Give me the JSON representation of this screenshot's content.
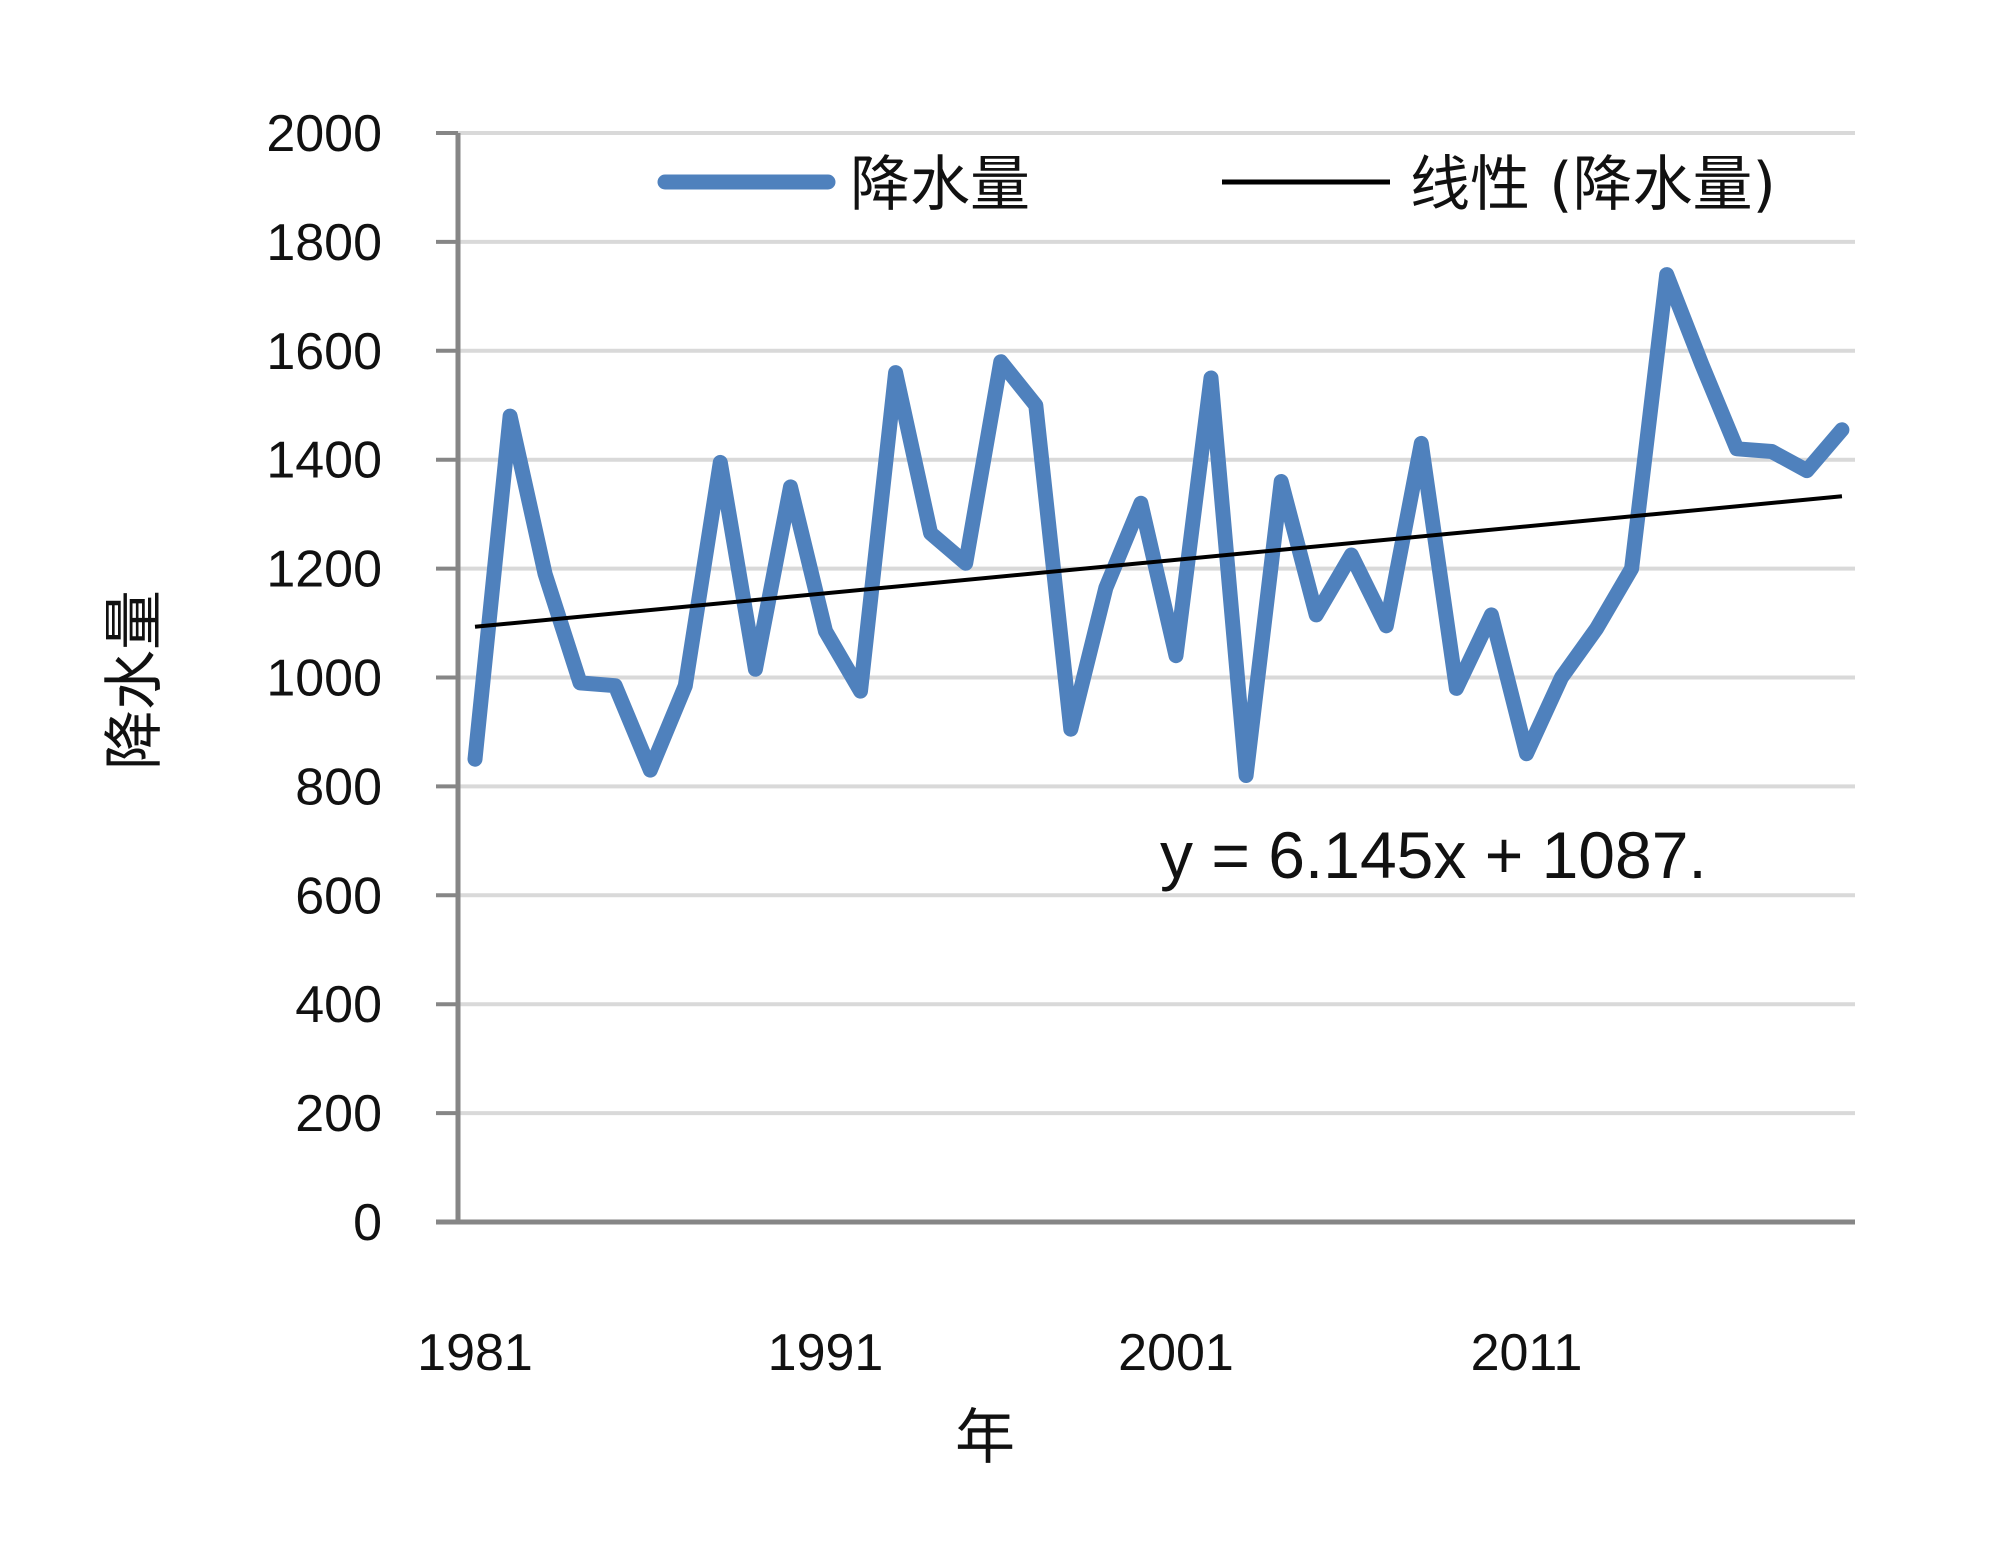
{
  "chart_data": {
    "type": "line",
    "title": "",
    "xlabel": "年",
    "ylabel": "降水量",
    "xlim": [
      1981,
      2020
    ],
    "ylim": [
      0,
      2000
    ],
    "y_ticks": [
      0,
      200,
      400,
      600,
      800,
      1000,
      1200,
      1400,
      1600,
      1800,
      2000
    ],
    "x_ticks": [
      1981,
      1991,
      2001,
      2011
    ],
    "x_tick_labels": [
      "1981",
      "1991",
      "2001",
      "2011"
    ],
    "y_tick_labels": [
      "0",
      "200",
      "400",
      "600",
      "800",
      "1000",
      "1200",
      "1400",
      "1600",
      "1800",
      "2000"
    ],
    "grid": "horizontal",
    "legend_position": "top",
    "x": [
      1981,
      1982,
      1983,
      1984,
      1985,
      1986,
      1987,
      1988,
      1989,
      1990,
      1991,
      1992,
      1993,
      1994,
      1995,
      1996,
      1997,
      1998,
      1999,
      2000,
      2001,
      2002,
      2003,
      2004,
      2005,
      2006,
      2007,
      2008,
      2009,
      2010,
      2011,
      2012,
      2013,
      2014,
      2015,
      2016,
      2017,
      2018,
      2019,
      2020
    ],
    "series": [
      {
        "name": "降水量",
        "color": "#4F81BD",
        "values": [
          850,
          1480,
          1190,
          990,
          985,
          830,
          985,
          1395,
          1015,
          1350,
          1085,
          975,
          1560,
          1265,
          1210,
          1580,
          1500,
          905,
          1165,
          1320,
          1040,
          1550,
          820,
          1360,
          1115,
          1225,
          1095,
          1430,
          980,
          1115,
          860,
          1000,
          1090,
          1200,
          1740,
          1575,
          1420,
          1415,
          1380,
          1455
        ]
      },
      {
        "name": "线性 (降水量)",
        "color": "#000000",
        "type": "trendline",
        "slope": 6.145,
        "intercept": 1087
      }
    ],
    "annotation": "y = 6.145x + 1087."
  },
  "colors": {
    "series": "#4F81BD",
    "trend": "#000000",
    "grid": "#D9D9D9",
    "axis": "#868686"
  }
}
